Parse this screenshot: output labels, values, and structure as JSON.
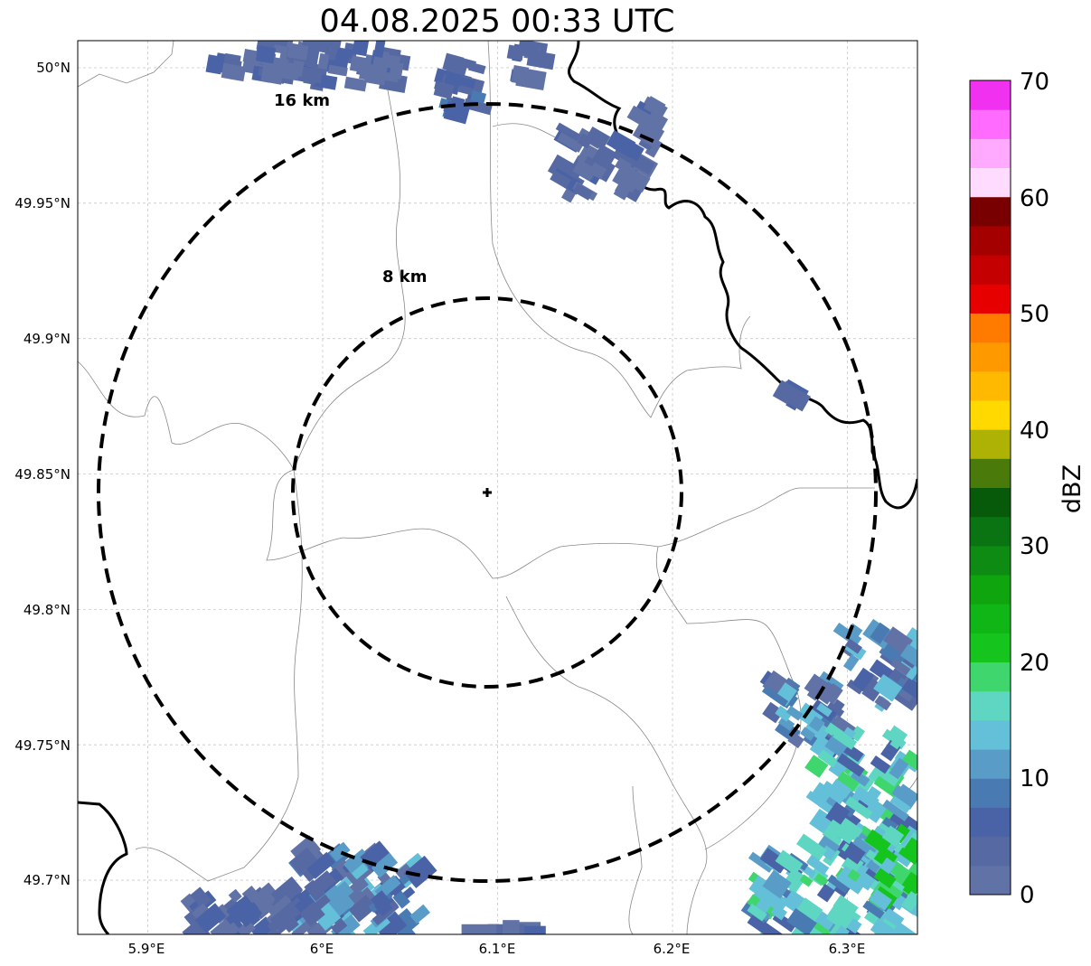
{
  "title": "04.08.2025 00:33 UTC",
  "map": {
    "lon_range": [
      5.86,
      6.34
    ],
    "lat_range": [
      49.68,
      50.01
    ],
    "lat_ticks": [
      {
        "value": 50.0,
        "label": "50°N"
      },
      {
        "value": 49.95,
        "label": "49.95°N"
      },
      {
        "value": 49.9,
        "label": "49.9°N"
      },
      {
        "value": 49.85,
        "label": "49.85°N"
      },
      {
        "value": 49.8,
        "label": "49.8°N"
      },
      {
        "value": 49.75,
        "label": "49.75°N"
      },
      {
        "value": 49.7,
        "label": "49.7°N"
      }
    ],
    "lon_ticks": [
      {
        "value": 5.9,
        "label": "5.9°E"
      },
      {
        "value": 6.0,
        "label": "6°E"
      },
      {
        "value": 6.1,
        "label": "6.1°E"
      },
      {
        "value": 6.2,
        "label": "6.2°E"
      },
      {
        "value": 6.3,
        "label": "6.3°E"
      }
    ],
    "gridlines": true,
    "center_marker": {
      "lon": 6.094,
      "lat": 49.843
    },
    "rings": [
      {
        "label": "8 km",
        "radius_km": 8
      },
      {
        "label": "16 km",
        "radius_km": 16
      }
    ]
  },
  "colorbar": {
    "label": "dBZ",
    "range": [
      0,
      70
    ],
    "ticks": [
      "0",
      "10",
      "20",
      "30",
      "40",
      "50",
      "60",
      "70"
    ],
    "colors": [
      "#6173a6",
      "#5669a2",
      "#4a63a6",
      "#4a7ab2",
      "#5a9cc8",
      "#63c0d8",
      "#5fd6c2",
      "#3fd66e",
      "#16c41e",
      "#10b616",
      "#0fa50f",
      "#0e8b12",
      "#0b7412",
      "#075a0a",
      "#4a7a0a",
      "#aeb204",
      "#ffd900",
      "#ffb900",
      "#ff9900",
      "#ff7b00",
      "#e60000",
      "#c40000",
      "#a50000",
      "#780000",
      "#ffdcff",
      "#ffaaff",
      "#ff6aff",
      "#f032f0"
    ]
  }
}
